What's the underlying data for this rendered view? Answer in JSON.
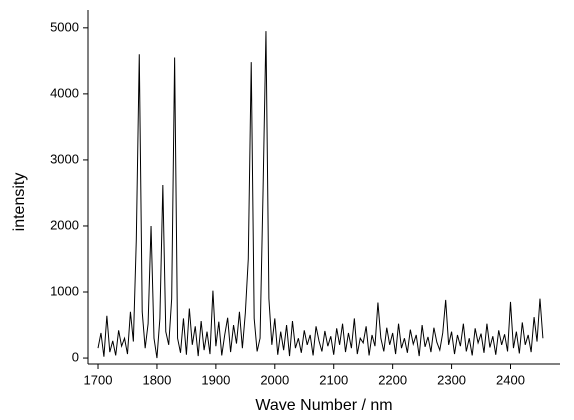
{
  "chart_data": {
    "type": "line",
    "xlabel": "Wave Number / nm",
    "ylabel": "intensity",
    "x": [
      1700,
      1705,
      1710,
      1715,
      1720,
      1725,
      1730,
      1735,
      1740,
      1745,
      1750,
      1755,
      1760,
      1765,
      1770,
      1775,
      1780,
      1785,
      1790,
      1795,
      1800,
      1805,
      1810,
      1815,
      1820,
      1825,
      1830,
      1835,
      1840,
      1845,
      1850,
      1855,
      1860,
      1865,
      1870,
      1875,
      1880,
      1885,
      1890,
      1895,
      1900,
      1905,
      1910,
      1915,
      1920,
      1925,
      1930,
      1935,
      1940,
      1945,
      1950,
      1955,
      1960,
      1965,
      1970,
      1975,
      1980,
      1985,
      1990,
      1995,
      2000,
      2005,
      2010,
      2015,
      2020,
      2025,
      2030,
      2035,
      2040,
      2045,
      2050,
      2055,
      2060,
      2065,
      2070,
      2075,
      2080,
      2085,
      2090,
      2095,
      2100,
      2105,
      2110,
      2115,
      2120,
      2125,
      2130,
      2135,
      2140,
      2145,
      2150,
      2155,
      2160,
      2165,
      2170,
      2175,
      2180,
      2185,
      2190,
      2195,
      2200,
      2205,
      2210,
      2215,
      2220,
      2225,
      2230,
      2235,
      2240,
      2245,
      2250,
      2255,
      2260,
      2265,
      2270,
      2275,
      2280,
      2285,
      2290,
      2295,
      2300,
      2305,
      2310,
      2315,
      2320,
      2325,
      2330,
      2335,
      2340,
      2345,
      2350,
      2355,
      2360,
      2365,
      2370,
      2375,
      2380,
      2385,
      2390,
      2395,
      2400,
      2405,
      2410,
      2415,
      2420,
      2425,
      2430,
      2435,
      2440,
      2445,
      2450,
      2455
    ],
    "series": [
      {
        "color": "#000000",
        "values": [
          150,
          380,
          20,
          640,
          90,
          260,
          40,
          420,
          180,
          300,
          60,
          700,
          250,
          1800,
          4600,
          700,
          150,
          520,
          2000,
          300,
          0,
          600,
          2620,
          400,
          200,
          900,
          4550,
          300,
          80,
          600,
          50,
          750,
          200,
          480,
          30,
          560,
          120,
          400,
          60,
          1020,
          180,
          550,
          40,
          350,
          610,
          90,
          500,
          220,
          700,
          150,
          680,
          1500,
          4480,
          600,
          100,
          300,
          2500,
          4950,
          900,
          200,
          600,
          50,
          400,
          120,
          500,
          30,
          560,
          150,
          300,
          80,
          420,
          200,
          350,
          40,
          480,
          260,
          100,
          410,
          180,
          330,
          50,
          450,
          200,
          520,
          90,
          380,
          150,
          600,
          60,
          300,
          230,
          480,
          40,
          350,
          180,
          840,
          300,
          100,
          460,
          200,
          380,
          60,
          520,
          150,
          300,
          80,
          430,
          210,
          350,
          30,
          500,
          170,
          320,
          90,
          460,
          240,
          120,
          380,
          880,
          200,
          400,
          60,
          350,
          180,
          520,
          100,
          300,
          40,
          450,
          230,
          370,
          80,
          520,
          160,
          330,
          50,
          420,
          200,
          360,
          100,
          850,
          150,
          400,
          70,
          540,
          200,
          350,
          90,
          620,
          250,
          900,
          300
        ]
      }
    ],
    "xlim": [
      1683,
      2484
    ],
    "ylim": [
      -90,
      5270
    ],
    "xticks": [
      1700,
      1800,
      1900,
      2000,
      2100,
      2200,
      2300,
      2400
    ],
    "yticks": [
      0,
      1000,
      2000,
      3000,
      4000,
      5000
    ]
  }
}
